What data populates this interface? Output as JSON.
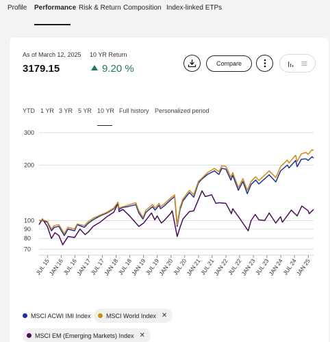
{
  "tabs": [
    {
      "label": "Profile"
    },
    {
      "label": "Performance"
    },
    {
      "label": "Risk & Return"
    },
    {
      "label": "Composition"
    },
    {
      "label": "Index-linked ETPs"
    }
  ],
  "summary": {
    "as_of": "As of March 12, 2025",
    "value": "3179.15",
    "return_label": "10 YR Return",
    "return_value": "9.20 %",
    "return_color": "#1c7c54"
  },
  "toolbar": {
    "download_icon": "download-icon",
    "compare_label": "Compare",
    "more_icon": "more-vertical-icon",
    "chart_view_icon": "bar-chart-icon",
    "list_view_icon": "list-icon"
  },
  "periods": [
    {
      "label": "YTD"
    },
    {
      "label": "1 YR"
    },
    {
      "label": "3 YR"
    },
    {
      "label": "5 YR"
    },
    {
      "label": "10 YR"
    },
    {
      "label": "Full history"
    },
    {
      "label": "Personalized period"
    }
  ],
  "legend": [
    {
      "label": "MSCI ACWI IMI Index",
      "color": "#1d2ea8",
      "removable": false
    },
    {
      "label": "MSCI World Index",
      "color": "#d18c0f",
      "removable": true
    },
    {
      "label": "MSCI EM (Emerging Markets) Index",
      "color": "#4b0a5a",
      "removable": true
    }
  ],
  "chart_data": {
    "type": "line",
    "y_scale": "log",
    "ylim": [
      65,
      310
    ],
    "xlim": [
      "2015-03-12",
      "2025-03-12"
    ],
    "y_ticks": [
      "70",
      "80",
      "90",
      "100",
      "200",
      "300"
    ],
    "x_ticks": [
      "JUL 15",
      "JAN 16",
      "JUL 16",
      "JAN 17",
      "JUL 17",
      "JAN 18",
      "JUL 18",
      "JAN 19",
      "JUL 19",
      "JAN 20",
      "JUL 20",
      "JAN 21",
      "JUL 21",
      "JAN 22",
      "JUL 22",
      "JAN 23",
      "JUL 23",
      "JAN 24",
      "JUL 24",
      "JAN 25"
    ],
    "grid": true,
    "series": [
      {
        "name": "MSCI ACWI IMI Index",
        "color": "#1d2ea8",
        "points": [
          [
            "2015-03-12",
            100
          ],
          [
            "2015-05-01",
            100
          ],
          [
            "2015-07-01",
            98
          ],
          [
            "2015-08-25",
            88
          ],
          [
            "2015-10-01",
            92
          ],
          [
            "2015-12-01",
            93
          ],
          [
            "2016-02-11",
            83
          ],
          [
            "2016-04-01",
            90
          ],
          [
            "2016-06-27",
            88
          ],
          [
            "2016-08-01",
            95
          ],
          [
            "2016-11-04",
            92
          ],
          [
            "2016-12-30",
            97
          ],
          [
            "2017-03-01",
            101
          ],
          [
            "2017-06-01",
            106
          ],
          [
            "2017-09-01",
            110
          ],
          [
            "2017-12-01",
            116
          ],
          [
            "2018-01-26",
            125
          ],
          [
            "2018-02-09",
            115
          ],
          [
            "2018-04-01",
            118
          ],
          [
            "2018-06-01",
            119
          ],
          [
            "2018-09-20",
            122
          ],
          [
            "2018-10-30",
            110
          ],
          [
            "2018-12-24",
            102
          ],
          [
            "2019-02-01",
            111
          ],
          [
            "2019-04-30",
            119
          ],
          [
            "2019-06-03",
            114
          ],
          [
            "2019-07-26",
            121
          ],
          [
            "2019-08-15",
            116
          ],
          [
            "2019-10-01",
            120
          ],
          [
            "2019-12-31",
            130
          ],
          [
            "2020-02-19",
            135
          ],
          [
            "2020-03-23",
            93
          ],
          [
            "2020-05-01",
            115
          ],
          [
            "2020-06-08",
            128
          ],
          [
            "2020-09-02",
            142
          ],
          [
            "2020-10-30",
            134
          ],
          [
            "2020-12-31",
            160
          ],
          [
            "2021-02-15",
            168
          ],
          [
            "2021-05-01",
            178
          ],
          [
            "2021-08-01",
            186
          ],
          [
            "2021-09-30",
            178
          ],
          [
            "2021-11-08",
            192
          ],
          [
            "2021-12-31",
            190
          ],
          [
            "2022-03-08",
            166
          ],
          [
            "2022-04-01",
            176
          ],
          [
            "2022-06-16",
            146
          ],
          [
            "2022-08-15",
            163
          ],
          [
            "2022-10-12",
            140
          ],
          [
            "2022-12-01",
            157
          ],
          [
            "2023-02-01",
            166
          ],
          [
            "2023-03-15",
            158
          ],
          [
            "2023-07-31",
            177
          ],
          [
            "2023-10-27",
            162
          ],
          [
            "2023-12-29",
            186
          ],
          [
            "2024-03-28",
            200
          ],
          [
            "2024-04-19",
            193
          ],
          [
            "2024-07-16",
            212
          ],
          [
            "2024-08-05",
            196
          ],
          [
            "2024-09-30",
            215
          ],
          [
            "2024-11-29",
            216
          ],
          [
            "2024-12-31",
            212
          ],
          [
            "2025-02-18",
            222
          ],
          [
            "2025-03-12",
            218
          ]
        ]
      },
      {
        "name": "MSCI World Index",
        "color": "#d18c0f",
        "points": [
          [
            "2015-03-12",
            100
          ],
          [
            "2015-05-01",
            101
          ],
          [
            "2015-07-01",
            99
          ],
          [
            "2015-08-25",
            90
          ],
          [
            "2015-10-01",
            94
          ],
          [
            "2015-12-01",
            95
          ],
          [
            "2016-02-11",
            85
          ],
          [
            "2016-04-01",
            92
          ],
          [
            "2016-06-27",
            90
          ],
          [
            "2016-08-01",
            96
          ],
          [
            "2016-11-04",
            94
          ],
          [
            "2016-12-30",
            99
          ],
          [
            "2017-03-01",
            103
          ],
          [
            "2017-06-01",
            107
          ],
          [
            "2017-09-01",
            111
          ],
          [
            "2017-12-01",
            117
          ],
          [
            "2018-01-26",
            126
          ],
          [
            "2018-02-09",
            117
          ],
          [
            "2018-04-01",
            119
          ],
          [
            "2018-06-01",
            121
          ],
          [
            "2018-09-20",
            125
          ],
          [
            "2018-10-30",
            113
          ],
          [
            "2018-12-24",
            104
          ],
          [
            "2019-02-01",
            114
          ],
          [
            "2019-04-30",
            122
          ],
          [
            "2019-06-03",
            117
          ],
          [
            "2019-07-26",
            124
          ],
          [
            "2019-08-15",
            119
          ],
          [
            "2019-10-01",
            123
          ],
          [
            "2019-12-31",
            133
          ],
          [
            "2020-02-19",
            138
          ],
          [
            "2020-03-23",
            95
          ],
          [
            "2020-05-01",
            118
          ],
          [
            "2020-06-08",
            131
          ],
          [
            "2020-09-02",
            146
          ],
          [
            "2020-10-30",
            138
          ],
          [
            "2020-12-31",
            163
          ],
          [
            "2021-02-15",
            170
          ],
          [
            "2021-05-01",
            182
          ],
          [
            "2021-08-01",
            192
          ],
          [
            "2021-09-30",
            184
          ],
          [
            "2021-11-08",
            198
          ],
          [
            "2021-12-31",
            197
          ],
          [
            "2022-03-08",
            172
          ],
          [
            "2022-04-01",
            182
          ],
          [
            "2022-06-16",
            151
          ],
          [
            "2022-08-15",
            169
          ],
          [
            "2022-10-12",
            146
          ],
          [
            "2022-12-01",
            163
          ],
          [
            "2023-02-01",
            173
          ],
          [
            "2023-03-15",
            165
          ],
          [
            "2023-07-31",
            186
          ],
          [
            "2023-10-27",
            171
          ],
          [
            "2023-12-29",
            196
          ],
          [
            "2024-03-28",
            213
          ],
          [
            "2024-04-19",
            205
          ],
          [
            "2024-07-16",
            226
          ],
          [
            "2024-08-05",
            209
          ],
          [
            "2024-09-30",
            230
          ],
          [
            "2024-11-29",
            234
          ],
          [
            "2024-12-31",
            229
          ],
          [
            "2025-02-18",
            242
          ],
          [
            "2025-03-12",
            240
          ]
        ]
      },
      {
        "name": "MSCI EM (Emerging Markets) Index",
        "color": "#4b0a5a",
        "points": [
          [
            "2015-03-12",
            95
          ],
          [
            "2015-04-27",
            102
          ],
          [
            "2015-07-01",
            93
          ],
          [
            "2015-08-24",
            80
          ],
          [
            "2015-10-09",
            86
          ],
          [
            "2015-12-01",
            83
          ],
          [
            "2016-01-21",
            74
          ],
          [
            "2016-04-01",
            82
          ],
          [
            "2016-06-27",
            81
          ],
          [
            "2016-09-07",
            90
          ],
          [
            "2016-11-14",
            84
          ],
          [
            "2016-12-30",
            87
          ],
          [
            "2017-03-01",
            93
          ],
          [
            "2017-06-01",
            98
          ],
          [
            "2017-09-01",
            105
          ],
          [
            "2017-12-01",
            111
          ],
          [
            "2018-01-26",
            124
          ],
          [
            "2018-02-09",
            112
          ],
          [
            "2018-04-01",
            115
          ],
          [
            "2018-06-29",
            106
          ],
          [
            "2018-09-11",
            98
          ],
          [
            "2018-10-30",
            93
          ],
          [
            "2019-01-02",
            97
          ],
          [
            "2019-04-17",
            110
          ],
          [
            "2019-05-30",
            101
          ],
          [
            "2019-07-01",
            106
          ],
          [
            "2019-08-26",
            97
          ],
          [
            "2019-10-01",
            100
          ],
          [
            "2019-12-31",
            110
          ],
          [
            "2020-01-17",
            113
          ],
          [
            "2020-03-23",
            82
          ],
          [
            "2020-05-01",
            92
          ],
          [
            "2020-06-08",
            102
          ],
          [
            "2020-09-02",
            112
          ],
          [
            "2020-10-30",
            113
          ],
          [
            "2020-12-31",
            130
          ],
          [
            "2021-02-17",
            145
          ],
          [
            "2021-04-01",
            135
          ],
          [
            "2021-06-25",
            138
          ],
          [
            "2021-08-20",
            124
          ],
          [
            "2021-10-01",
            125
          ],
          [
            "2021-12-31",
            124
          ],
          [
            "2022-03-15",
            109
          ],
          [
            "2022-04-01",
            116
          ],
          [
            "2022-07-01",
            103
          ],
          [
            "2022-10-24",
            88
          ],
          [
            "2022-12-01",
            100
          ],
          [
            "2023-01-26",
            108
          ],
          [
            "2023-03-15",
            101
          ],
          [
            "2023-05-31",
            100
          ],
          [
            "2023-07-31",
            110
          ],
          [
            "2023-10-26",
            97
          ],
          [
            "2023-12-29",
            105
          ],
          [
            "2024-01-22",
            98
          ],
          [
            "2024-04-01",
            107
          ],
          [
            "2024-05-20",
            114
          ],
          [
            "2024-08-05",
            106
          ],
          [
            "2024-10-07",
            120
          ],
          [
            "2024-12-31",
            113
          ],
          [
            "2025-01-13",
            109
          ],
          [
            "2025-03-12",
            115
          ]
        ]
      }
    ]
  }
}
